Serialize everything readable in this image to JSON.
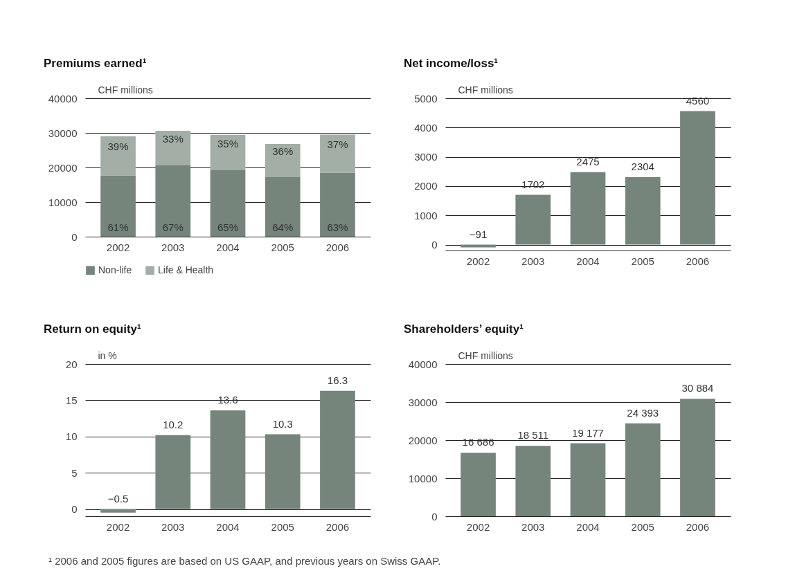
{
  "chart_data": [
    {
      "type": "bar",
      "title": "Premiums earned¹",
      "ylabel": "CHF millions",
      "categories": [
        "2002",
        "2003",
        "2004",
        "2005",
        "2006"
      ],
      "stacked": true,
      "ylim": [
        0,
        40000
      ],
      "yticks": [
        0,
        10000,
        20000,
        30000,
        40000
      ],
      "grid": "y",
      "legend": "bottom",
      "annotations": [
        "61%",
        "67%",
        "65%",
        "64%",
        "63%",
        "39%",
        "33%",
        "35%",
        "36%",
        "37%"
      ],
      "series": [
        {
          "name": "Non-life",
          "color": "#75857b",
          "values": [
            17700,
            20600,
            19200,
            17200,
            18500
          ]
        },
        {
          "name": "Life & Health",
          "color": "#a3aea6",
          "values": [
            11300,
            10000,
            10200,
            9600,
            11000
          ]
        }
      ]
    },
    {
      "type": "bar",
      "title": "Net income/loss¹",
      "ylabel": "CHF millions",
      "categories": [
        "2002",
        "2003",
        "2004",
        "2005",
        "2006"
      ],
      "ylim": [
        -200,
        5000
      ],
      "yticks": [
        0,
        1000,
        2000,
        3000,
        4000,
        5000
      ],
      "grid": "y",
      "data_labels": true,
      "series": [
        {
          "color": "#75857b",
          "values": [
            -91,
            1702,
            2475,
            2304,
            4560
          ]
        }
      ]
    },
    {
      "type": "bar",
      "title": "Return on equity¹",
      "ylabel": "in %",
      "categories": [
        "2002",
        "2003",
        "2004",
        "2005",
        "2006"
      ],
      "ylim": [
        -1,
        20
      ],
      "yticks": [
        0,
        5,
        10,
        15,
        20
      ],
      "grid": "y",
      "data_labels": true,
      "series": [
        {
          "color": "#75857b",
          "values": [
            -0.5,
            10.2,
            13.6,
            10.3,
            16.3
          ]
        }
      ]
    },
    {
      "type": "bar",
      "title": "Shareholders’ equity¹",
      "ylabel": "CHF millions",
      "categories": [
        "2002",
        "2003",
        "2004",
        "2005",
        "2006"
      ],
      "ylim": [
        0,
        40000
      ],
      "yticks": [
        0,
        10000,
        20000,
        30000,
        40000
      ],
      "grid": "y",
      "annotations": [
        "¹  2006 and 2005 figures are based on US GAAP, and previous years on Swiss GAAP."
      ],
      "series": [
        {
          "color": "#75857b",
          "values": [
            16686,
            18511,
            19177,
            24393,
            30884
          ],
          "value_labels": [
            "16 686",
            "18 511",
            "19 177",
            "24 393",
            "30 884"
          ]
        }
      ]
    }
  ]
}
